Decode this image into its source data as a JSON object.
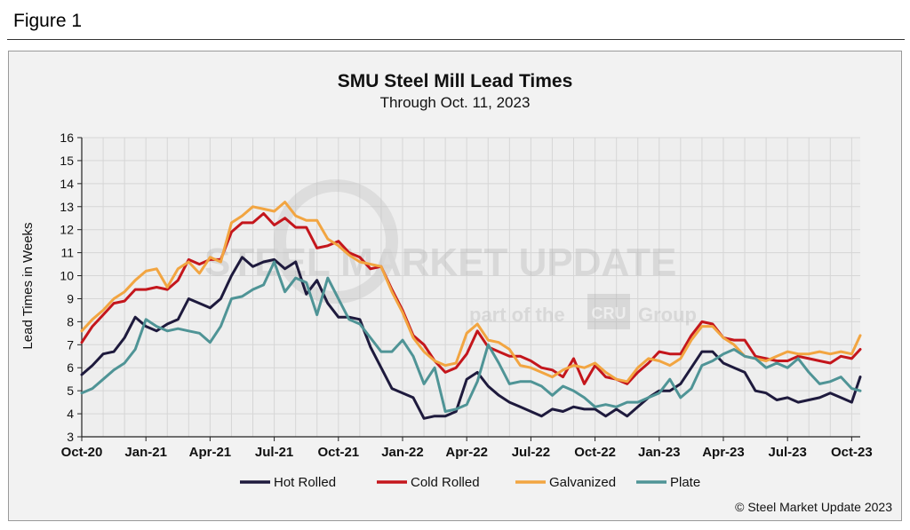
{
  "figure_label": "Figure 1",
  "watermark": {
    "brand": "STEEL MARKET UPDATE",
    "tagline_pre": "part of the",
    "tagline_logo": "CRU",
    "tagline_post": "Group"
  },
  "copyright": "© Steel Market Update 2023",
  "colors": {
    "hot_rolled": "#1e1a3d",
    "cold_rolled": "#c4161c",
    "galvanized": "#f2a541",
    "plate": "#4f9496",
    "background": "#f2f2f2",
    "grid": "#d6d6d6"
  },
  "chart_data": {
    "type": "line",
    "title": "SMU Steel Mill Lead Times",
    "subtitle": "Through  Oct. 11, 2023",
    "xlabel": "",
    "ylabel": "Lead Times in Weeks",
    "ylim": [
      3,
      16
    ],
    "yticks": [
      3,
      4,
      5,
      6,
      7,
      8,
      9,
      10,
      11,
      12,
      13,
      14,
      15,
      16
    ],
    "grid": true,
    "legend": "bottom",
    "x_range": [
      0,
      36.4
    ],
    "x_ticks": [
      {
        "x": 0,
        "label": "Oct-20"
      },
      {
        "x": 3,
        "label": "Jan-21"
      },
      {
        "x": 6,
        "label": "Apr-21"
      },
      {
        "x": 9,
        "label": "Jul-21"
      },
      {
        "x": 12,
        "label": "Oct-21"
      },
      {
        "x": 15,
        "label": "Jan-22"
      },
      {
        "x": 18,
        "label": "Apr-22"
      },
      {
        "x": 21,
        "label": "Jul-22"
      },
      {
        "x": 24,
        "label": "Oct-22"
      },
      {
        "x": 27,
        "label": "Jan-23"
      },
      {
        "x": 30,
        "label": "Apr-23"
      },
      {
        "x": 33,
        "label": "Jul-23"
      },
      {
        "x": 36,
        "label": "Oct-23"
      }
    ],
    "series": [
      {
        "name": "Hot Rolled",
        "color_key": "hot_rolled",
        "x": [
          0,
          0.5,
          1,
          1.5,
          2,
          2.5,
          3,
          3.5,
          4,
          4.5,
          5,
          5.5,
          6,
          6.5,
          7,
          7.5,
          8,
          8.5,
          9,
          9.5,
          10,
          10.5,
          11,
          11.5,
          12,
          12.5,
          13,
          13.5,
          14,
          14.5,
          15,
          15.5,
          16,
          16.5,
          17,
          17.5,
          18,
          18.5,
          19,
          19.5,
          20,
          20.5,
          21,
          21.5,
          22,
          22.5,
          23,
          23.5,
          24,
          24.5,
          25,
          25.5,
          26,
          26.5,
          27,
          27.5,
          28,
          28.5,
          29,
          29.5,
          30,
          30.5,
          31,
          31.5,
          32,
          32.5,
          33,
          33.5,
          34,
          34.5,
          35,
          35.5,
          36,
          36.4
        ],
        "values": [
          5.7,
          6.1,
          6.6,
          6.7,
          7.3,
          8.2,
          7.8,
          7.6,
          7.9,
          8.1,
          9.0,
          8.8,
          8.6,
          9.0,
          10.0,
          10.8,
          10.4,
          10.6,
          10.7,
          10.3,
          10.6,
          9.2,
          9.8,
          8.8,
          8.2,
          8.2,
          8.1,
          6.9,
          6.0,
          5.1,
          4.9,
          4.7,
          3.8,
          3.9,
          3.9,
          4.1,
          5.5,
          5.8,
          5.2,
          4.8,
          4.5,
          4.3,
          4.1,
          3.9,
          4.2,
          4.1,
          4.3,
          4.2,
          4.2,
          3.9,
          4.2,
          3.9,
          4.3,
          4.7,
          5.0,
          5.0,
          5.3,
          6.0,
          6.7,
          6.7,
          6.2,
          6.0,
          5.8,
          5.0,
          4.9,
          4.6,
          4.7,
          4.5,
          4.6,
          4.7,
          4.9,
          4.7,
          4.5,
          5.6
        ]
      },
      {
        "name": "Cold Rolled",
        "color_key": "cold_rolled",
        "x": [
          0,
          0.5,
          1,
          1.5,
          2,
          2.5,
          3,
          3.5,
          4,
          4.5,
          5,
          5.5,
          6,
          6.5,
          7,
          7.5,
          8,
          8.5,
          9,
          9.5,
          10,
          10.5,
          11,
          11.5,
          12,
          12.5,
          13,
          13.5,
          14,
          14.5,
          15,
          15.5,
          16,
          16.5,
          17,
          17.5,
          18,
          18.5,
          19,
          19.5,
          20,
          20.5,
          21,
          21.5,
          22,
          22.5,
          23,
          23.5,
          24,
          24.5,
          25,
          25.5,
          26,
          26.5,
          27,
          27.5,
          28,
          28.5,
          29,
          29.5,
          30,
          30.5,
          31,
          31.5,
          32,
          32.5,
          33,
          33.5,
          34,
          34.5,
          35,
          35.5,
          36,
          36.4
        ],
        "values": [
          7.1,
          7.8,
          8.3,
          8.8,
          8.9,
          9.4,
          9.4,
          9.5,
          9.4,
          9.8,
          10.7,
          10.5,
          10.7,
          10.7,
          11.9,
          12.3,
          12.3,
          12.7,
          12.2,
          12.5,
          12.1,
          12.1,
          11.2,
          11.3,
          11.5,
          11.0,
          10.8,
          10.3,
          10.4,
          9.4,
          8.5,
          7.4,
          7.0,
          6.3,
          5.8,
          6.0,
          6.6,
          7.6,
          6.9,
          6.7,
          6.5,
          6.5,
          6.3,
          6.0,
          5.9,
          5.6,
          6.4,
          5.3,
          6.1,
          5.6,
          5.5,
          5.3,
          5.8,
          6.2,
          6.7,
          6.6,
          6.6,
          7.4,
          8.0,
          7.9,
          7.3,
          7.2,
          7.2,
          6.5,
          6.4,
          6.3,
          6.3,
          6.5,
          6.4,
          6.3,
          6.2,
          6.5,
          6.4,
          6.8
        ]
      },
      {
        "name": "Galvanized",
        "color_key": "galvanized",
        "x": [
          0,
          0.5,
          1,
          1.5,
          2,
          2.5,
          3,
          3.5,
          4,
          4.5,
          5,
          5.5,
          6,
          6.5,
          7,
          7.5,
          8,
          8.5,
          9,
          9.5,
          10,
          10.5,
          11,
          11.5,
          12,
          12.5,
          13,
          13.5,
          14,
          14.5,
          15,
          15.5,
          16,
          16.5,
          17,
          17.5,
          18,
          18.5,
          19,
          19.5,
          20,
          20.5,
          21,
          21.5,
          22,
          22.5,
          23,
          23.5,
          24,
          24.5,
          25,
          25.5,
          26,
          26.5,
          27,
          27.5,
          28,
          28.5,
          29,
          29.5,
          30,
          30.5,
          31,
          31.5,
          32,
          32.5,
          33,
          33.5,
          34,
          34.5,
          35,
          35.5,
          36,
          36.4
        ],
        "values": [
          7.6,
          8.1,
          8.5,
          9.0,
          9.3,
          9.8,
          10.2,
          10.3,
          9.5,
          10.3,
          10.6,
          10.1,
          10.8,
          10.6,
          12.3,
          12.6,
          13.0,
          12.9,
          12.8,
          13.2,
          12.6,
          12.4,
          12.4,
          11.6,
          11.3,
          10.9,
          10.6,
          10.5,
          10.4,
          9.3,
          8.4,
          7.3,
          6.7,
          6.3,
          6.1,
          6.2,
          7.5,
          7.9,
          7.2,
          7.1,
          6.8,
          6.1,
          6.0,
          5.8,
          5.6,
          5.9,
          6.1,
          6.0,
          6.2,
          5.8,
          5.5,
          5.4,
          6.0,
          6.4,
          6.3,
          6.1,
          6.4,
          7.2,
          7.8,
          7.8,
          7.3,
          7.0,
          6.5,
          6.4,
          6.3,
          6.5,
          6.7,
          6.6,
          6.6,
          6.7,
          6.6,
          6.7,
          6.6,
          7.4
        ]
      },
      {
        "name": "Plate",
        "color_key": "plate",
        "x": [
          0,
          0.5,
          1,
          1.5,
          2,
          2.5,
          3,
          3.5,
          4,
          4.5,
          5,
          5.5,
          6,
          6.5,
          7,
          7.5,
          8,
          8.5,
          9,
          9.5,
          10,
          10.5,
          11,
          11.5,
          12,
          12.5,
          13,
          13.5,
          14,
          14.5,
          15,
          15.5,
          16,
          16.5,
          17,
          17.5,
          18,
          18.5,
          19,
          19.5,
          20,
          20.5,
          21,
          21.5,
          22,
          22.5,
          23,
          23.5,
          24,
          24.5,
          25,
          25.5,
          26,
          26.5,
          27,
          27.5,
          28,
          28.5,
          29,
          29.5,
          30,
          30.5,
          31,
          31.5,
          32,
          32.5,
          33,
          33.5,
          34,
          34.5,
          35,
          35.5,
          36,
          36.4
        ],
        "values": [
          4.9,
          5.1,
          5.5,
          5.9,
          6.2,
          6.8,
          8.1,
          7.8,
          7.6,
          7.7,
          7.6,
          7.5,
          7.1,
          7.8,
          9.0,
          9.1,
          9.4,
          9.6,
          10.6,
          9.3,
          9.9,
          9.7,
          8.3,
          9.9,
          9.0,
          8.1,
          7.9,
          7.3,
          6.7,
          6.7,
          7.2,
          6.5,
          5.3,
          6.0,
          4.1,
          4.2,
          4.4,
          5.4,
          7.0,
          6.2,
          5.3,
          5.4,
          5.4,
          5.2,
          4.8,
          5.2,
          5.0,
          4.7,
          4.3,
          4.4,
          4.3,
          4.5,
          4.5,
          4.7,
          4.9,
          5.5,
          4.7,
          5.1,
          6.1,
          6.3,
          6.6,
          6.8,
          6.5,
          6.4,
          6.0,
          6.2,
          6.0,
          6.4,
          5.8,
          5.3,
          5.4,
          5.6,
          5.1,
          5.0
        ]
      }
    ]
  }
}
